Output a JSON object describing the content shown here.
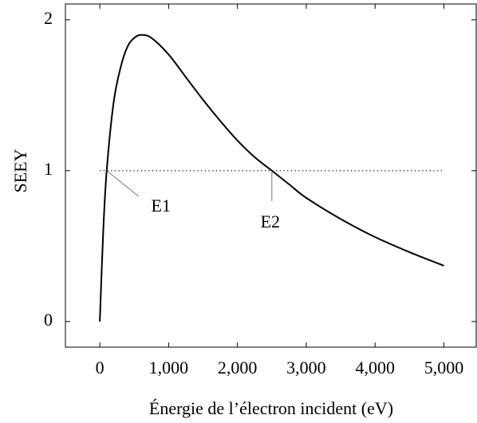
{
  "chart_data": {
    "type": "line",
    "x_label": "Énergie de l’électron incident (eV)",
    "y_label": "SEEY",
    "x": [
      0,
      50,
      100,
      200,
      300,
      400,
      500,
      600,
      750,
      1000,
      1250,
      1500,
      1750,
      2000,
      2250,
      2500,
      2750,
      3000,
      3500,
      4000,
      4500,
      5000
    ],
    "series": [
      {
        "color": "#000000",
        "values": [
          0,
          0.6,
          1.0,
          1.45,
          1.68,
          1.82,
          1.88,
          1.9,
          1.88,
          1.77,
          1.62,
          1.47,
          1.33,
          1.2,
          1.09,
          1.0,
          0.91,
          0.82,
          0.68,
          0.56,
          0.46,
          0.37
        ]
      }
    ],
    "hline": {
      "y": 1,
      "x": [
        0,
        5000
      ],
      "color": "#000000"
    },
    "annotations": [
      {
        "text": "E1",
        "x": 100,
        "y": 1
      },
      {
        "text": "E2",
        "x": 2500,
        "y": 1
      }
    ],
    "xlim": [
      -500,
      5470
    ],
    "ylim": [
      -0.17,
      2.105
    ],
    "xticks": [
      0,
      {
        "value": 1000,
        "label": "1,000"
      },
      {
        "value": 2000,
        "label": "2,000"
      },
      {
        "value": 3000,
        "label": "3,000"
      },
      {
        "value": 4000,
        "label": "4,000"
      },
      {
        "value": 5000,
        "label": "5,000"
      }
    ],
    "yticks": [
      0,
      1,
      2
    ],
    "grid": false
  }
}
